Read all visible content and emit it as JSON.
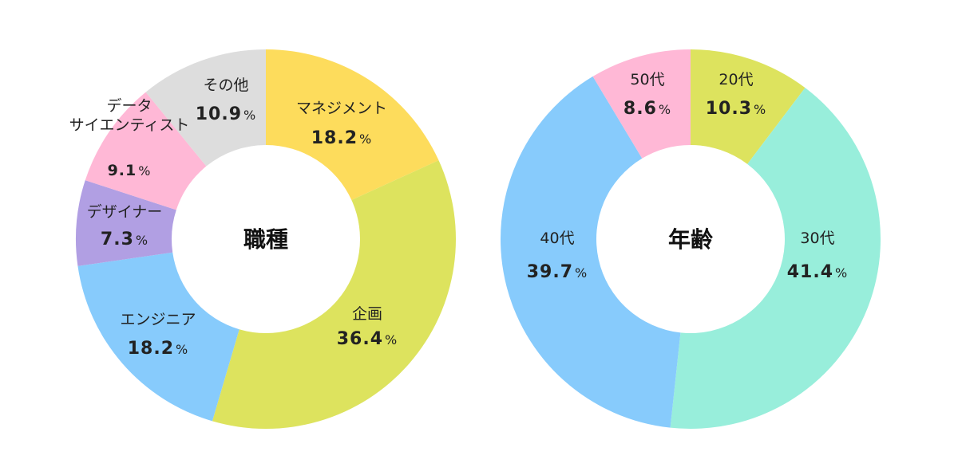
{
  "chart_data": [
    {
      "type": "pie",
      "title": "職種",
      "slices": [
        {
          "label": "マネジメント",
          "value": 18.2,
          "display": "18.2",
          "unit": "%",
          "color": "#FDDC5C"
        },
        {
          "label": "企画",
          "value": 36.4,
          "display": "36.4",
          "unit": "%",
          "color": "#DDE35E"
        },
        {
          "label": "エンジニア",
          "value": 18.2,
          "display": "18.2",
          "unit": "%",
          "color": "#87CBFC"
        },
        {
          "label": "デザイナー",
          "value": 7.3,
          "display": "7.3",
          "unit": "%",
          "color": "#B19FE3"
        },
        {
          "label_lines": [
            "データ",
            "サイエンティスト"
          ],
          "value": 9.1,
          "display": "9.1",
          "unit": "%",
          "color": "#FFB8D6"
        },
        {
          "label": "その他",
          "value": 10.9,
          "display": "10.9",
          "unit": "%",
          "color": "#DDDDDD"
        }
      ]
    },
    {
      "type": "pie",
      "title": "年齢",
      "slices": [
        {
          "label": "20代",
          "value": 10.3,
          "display": "10.3",
          "unit": "%",
          "color": "#DDE35E"
        },
        {
          "label": "30代",
          "value": 41.4,
          "display": "41.4",
          "unit": "%",
          "color": "#98EEDB"
        },
        {
          "label": "40代",
          "value": 39.7,
          "display": "39.7",
          "unit": "%",
          "color": "#87CBFC"
        },
        {
          "label": "50代",
          "value": 8.6,
          "display": "8.6",
          "unit": "%",
          "color": "#FFB8D6"
        }
      ]
    }
  ]
}
